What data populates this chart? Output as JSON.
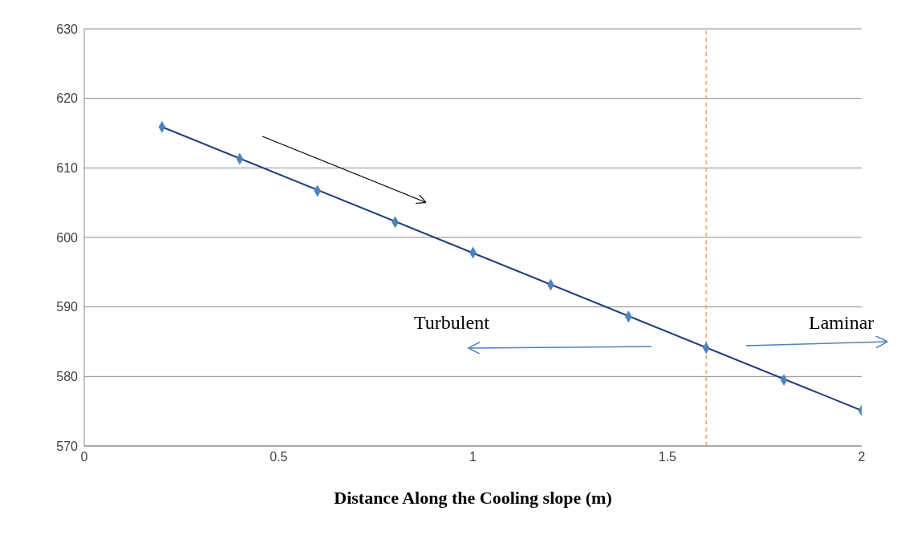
{
  "chart_data": {
    "type": "scatter",
    "xlabel": "Distance Along the Cooling slope (m)",
    "xlim": [
      0,
      2
    ],
    "xticks": [
      0,
      0.5,
      1,
      1.5,
      2
    ],
    "ylim": [
      570,
      630
    ],
    "yticks": [
      570,
      580,
      590,
      600,
      610,
      620,
      630
    ],
    "grid": "y",
    "legend": false,
    "marker": "diamond",
    "x": [
      0.2,
      0.4,
      0.6,
      0.8,
      1.0,
      1.2,
      1.4,
      1.6,
      1.8,
      2.0
    ],
    "series": [
      {
        "color": "#4f81bd",
        "values": [
          615.9,
          611.3,
          606.7,
          602.2,
          597.8,
          593.2,
          588.6,
          584.1,
          579.5,
          575.1
        ]
      },
      {
        "type": "line",
        "color": "#1f3f7a",
        "x": [
          0.2,
          2.0
        ],
        "values": [
          615.9,
          575.1
        ],
        "marker": "none"
      }
    ],
    "ref_lines": [
      {
        "axis": "x",
        "value": 1.6,
        "color": "#f4a460",
        "line_style": "dashed"
      }
    ],
    "annotations": [
      "Turbulent",
      "Laminar"
    ]
  }
}
